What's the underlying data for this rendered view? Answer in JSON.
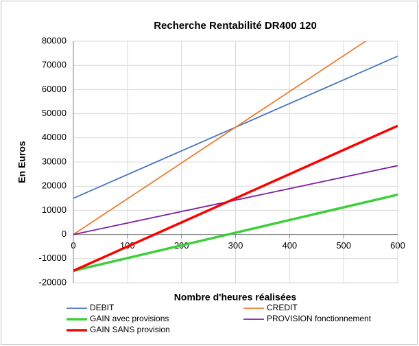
{
  "chart_data": {
    "type": "line",
    "title": "Recherche Rentabilité DR400 120",
    "x_label": "Nombre d'heures réalisées",
    "y_label": "En Euros",
    "x": [
      0,
      100,
      200,
      300,
      400,
      500,
      600
    ],
    "series": [
      {
        "name": "DEBIT",
        "color": "#4472c4",
        "line_width": 1.8,
        "values": [
          15000,
          24800,
          34600,
          44400,
          54200,
          64000,
          73800
        ]
      },
      {
        "name": "CREDIT",
        "color": "#ed7d31",
        "line_width": 1.8,
        "values": [
          0,
          14800,
          29600,
          44400,
          59200,
          74000,
          88800
        ]
      },
      {
        "name": "GAIN avec provisions",
        "color": "#3ccf3c",
        "line_width": 3.5,
        "values": [
          -15000,
          -9750,
          -4500,
          750,
          6000,
          11250,
          16500
        ]
      },
      {
        "name": "PROVISION fonctionnement",
        "color": "#7b1fa2",
        "line_width": 1.8,
        "values": [
          0,
          4750,
          9500,
          14250,
          19000,
          23750,
          28500
        ]
      },
      {
        "name": "GAIN SANS provision",
        "color": "#ff0000",
        "line_width": 3.5,
        "values": [
          -15000,
          -5000,
          5000,
          15000,
          25000,
          35000,
          45000
        ]
      }
    ],
    "xlim": [
      0,
      600
    ],
    "xticks": [
      0,
      100,
      200,
      300,
      400,
      500,
      600
    ],
    "ylim": [
      -20000,
      80000
    ],
    "yticks": [
      -20000,
      -10000,
      0,
      10000,
      20000,
      30000,
      40000,
      50000,
      60000,
      70000,
      80000
    ],
    "grid": true,
    "legend": "bottom"
  }
}
